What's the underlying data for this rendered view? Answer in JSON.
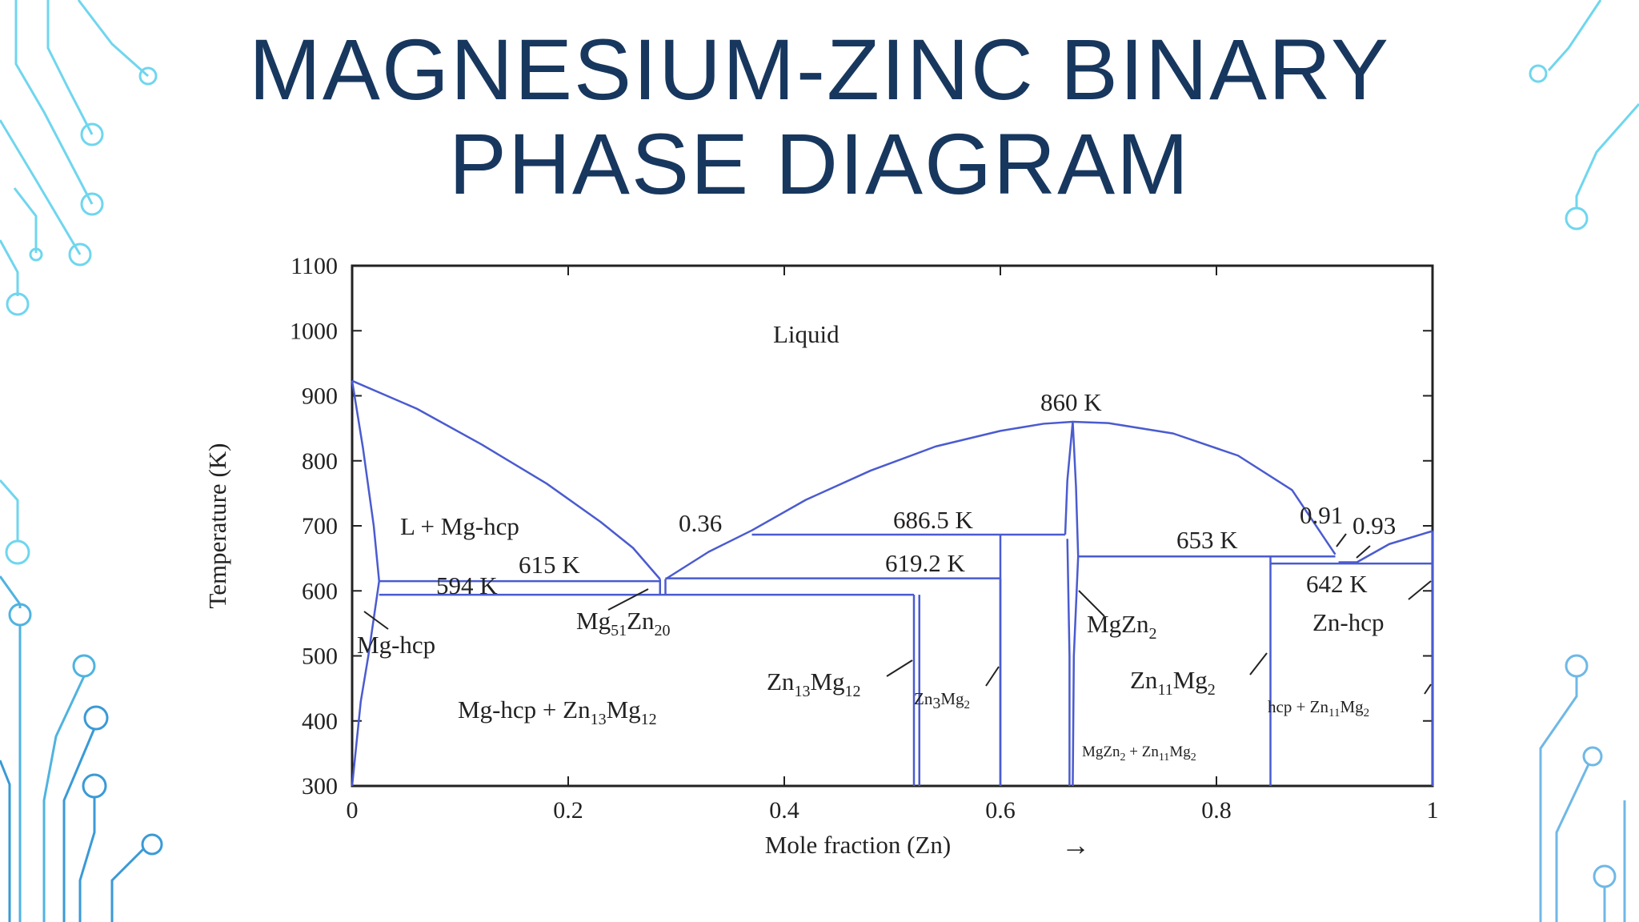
{
  "slide": {
    "title_line1": "MAGNESIUM-ZINC BINARY",
    "title_line2": "PHASE DIAGRAM",
    "accent_color": "#4fc3e0",
    "title_color": "#17375e",
    "decoration": "circuit-board-lines"
  },
  "chart_data": {
    "type": "line",
    "title": "",
    "xlabel": "Mole fraction (Zn)",
    "xlabel_arrow": "→",
    "ylabel": "Temperature (K)",
    "xlim": [
      0,
      1
    ],
    "ylim": [
      300,
      1100
    ],
    "x_ticks": [
      {
        "value": 0,
        "label": "0"
      },
      {
        "value": 0.2,
        "label": "0.2"
      },
      {
        "value": 0.4,
        "label": "0.4"
      },
      {
        "value": 0.6,
        "label": "0.6"
      },
      {
        "value": 0.8,
        "label": "0.8"
      },
      {
        "value": 1,
        "label": "1"
      }
    ],
    "y_ticks": [
      {
        "value": 300,
        "label": "300"
      },
      {
        "value": 400,
        "label": "400"
      },
      {
        "value": 500,
        "label": "500"
      },
      {
        "value": 600,
        "label": "600"
      },
      {
        "value": 700,
        "label": "700"
      },
      {
        "value": 800,
        "label": "800"
      },
      {
        "value": 900,
        "label": "900"
      },
      {
        "value": 1000,
        "label": "1000"
      },
      {
        "value": 1100,
        "label": "1100"
      }
    ],
    "line_color": "#4a5bd0",
    "series": [
      {
        "points": [
          [
            0,
            923
          ],
          [
            0.06,
            880
          ],
          [
            0.12,
            825
          ],
          [
            0.18,
            765
          ],
          [
            0.23,
            706
          ],
          [
            0.26,
            666
          ],
          [
            0.285,
            618
          ]
        ]
      },
      {
        "points": [
          [
            0.29,
            618
          ],
          [
            0.33,
            660
          ],
          [
            0.37,
            693
          ],
          [
            0.42,
            740
          ],
          [
            0.48,
            785
          ],
          [
            0.54,
            822
          ],
          [
            0.6,
            846
          ],
          [
            0.64,
            857
          ],
          [
            0.667,
            860
          ],
          [
            0.7,
            858
          ],
          [
            0.76,
            842
          ],
          [
            0.82,
            808
          ],
          [
            0.87,
            755
          ],
          [
            0.91,
            656
          ]
        ]
      },
      {
        "points": [
          [
            0.93,
            644
          ],
          [
            0.96,
            672
          ],
          [
            1.0,
            692
          ]
        ]
      },
      {
        "points": [
          [
            0,
            923
          ],
          [
            0.01,
            820
          ],
          [
            0.02,
            700
          ],
          [
            0.025,
            615
          ]
        ]
      },
      {
        "points": [
          [
            0.025,
            615
          ],
          [
            0.015,
            500
          ],
          [
            0.008,
            430
          ],
          [
            0,
            300
          ]
        ]
      },
      {
        "points": [
          [
            0.025,
            615
          ],
          [
            0.285,
            615
          ]
        ]
      },
      {
        "points": [
          [
            0.025,
            594
          ],
          [
            0.52,
            594
          ]
        ]
      },
      {
        "points": [
          [
            0.29,
            619.2
          ],
          [
            0.6,
            619.2
          ]
        ]
      },
      {
        "points": [
          [
            0.37,
            686.5
          ],
          [
            0.66,
            686.5
          ]
        ]
      },
      {
        "points": [
          [
            0.672,
            653
          ],
          [
            0.91,
            653
          ]
        ]
      },
      {
        "points": [
          [
            0.85,
            642
          ],
          [
            1.0,
            642
          ]
        ]
      },
      {
        "points": [
          [
            0.285,
            618
          ],
          [
            0.285,
            594
          ]
        ]
      },
      {
        "points": [
          [
            0.29,
            618
          ],
          [
            0.29,
            594
          ]
        ]
      },
      {
        "points": [
          [
            0.52,
            594
          ],
          [
            0.52,
            300
          ]
        ]
      },
      {
        "points": [
          [
            0.525,
            594
          ],
          [
            0.525,
            300
          ]
        ]
      },
      {
        "points": [
          [
            0.6,
            686.5
          ],
          [
            0.6,
            300
          ]
        ]
      },
      {
        "points": [
          [
            0.6,
            619.2
          ],
          [
            0.6,
            300
          ]
        ]
      },
      {
        "points": [
          [
            0.66,
            686.5
          ],
          [
            0.662,
            770
          ],
          [
            0.667,
            860
          ],
          [
            0.67,
            760
          ],
          [
            0.672,
            653
          ],
          [
            0.668,
            500
          ],
          [
            0.667,
            300
          ]
        ]
      },
      {
        "points": [
          [
            0.662,
            680
          ],
          [
            0.664,
            500
          ],
          [
            0.664,
            300
          ]
        ]
      },
      {
        "points": [
          [
            0.85,
            653
          ],
          [
            0.85,
            300
          ]
        ]
      },
      {
        "points": [
          [
            0.913,
            644
          ],
          [
            0.93,
            644
          ]
        ]
      },
      {
        "points": [
          [
            1.0,
            692
          ],
          [
            1.0,
            300
          ]
        ]
      }
    ],
    "annotations": [
      {
        "text": "Liquid",
        "x": 0.43,
        "y": 1000
      },
      {
        "text": "860 K",
        "x": 0.675,
        "y": 878
      },
      {
        "text": "L + Mg-hcp",
        "x": 0.11,
        "y": 695
      },
      {
        "text": "0.36",
        "x": 0.33,
        "y": 700
      },
      {
        "text": "686.5 K",
        "x": 0.55,
        "y": 705
      },
      {
        "text": "615 K",
        "x": 0.19,
        "y": 633
      },
      {
        "text": "594 K",
        "x": 0.12,
        "y": 593
      },
      {
        "text": "619.2 K",
        "x": 0.545,
        "y": 637
      },
      {
        "text": "653 K",
        "x": 0.77,
        "y": 672
      },
      {
        "text": "0.91",
        "x": 0.9,
        "y": 710
      },
      {
        "text": "0.93",
        "x": 0.945,
        "y": 695
      },
      {
        "text": "642 K",
        "x": 0.91,
        "y": 598
      },
      {
        "text": "Mg51Zn20",
        "x": 0.21,
        "y": 555
      },
      {
        "text": "Mg-hcp",
        "x": 0.005,
        "y": 508
      },
      {
        "text": "MgZn2",
        "x": 0.68,
        "y": 551
      },
      {
        "text": "Zn-hcp",
        "x": 0.9,
        "y": 553
      },
      {
        "text": "Zn13Mg12",
        "x": 0.385,
        "y": 446
      },
      {
        "text": "Zn3Mg2",
        "x": 0.53,
        "y": 415
      },
      {
        "text": "Zn11Mg2",
        "x": 0.72,
        "y": 448
      },
      {
        "text": "Mg-hcp + Zn13Mg12",
        "x": 0.1,
        "y": 400
      },
      {
        "text": "hcp + Zn11Mg2",
        "x": 0.86,
        "y": 400
      },
      {
        "text": "MgZn2 + Zn11Mg2",
        "x": 0.675,
        "y": 340
      }
    ]
  }
}
